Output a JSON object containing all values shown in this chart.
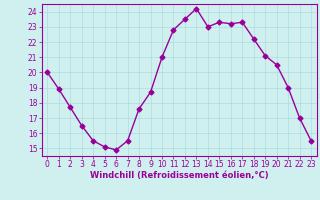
{
  "x": [
    0,
    1,
    2,
    3,
    4,
    5,
    6,
    7,
    8,
    9,
    10,
    11,
    12,
    13,
    14,
    15,
    16,
    17,
    18,
    19,
    20,
    21,
    22,
    23
  ],
  "y": [
    20.0,
    18.9,
    17.7,
    16.5,
    15.5,
    15.1,
    14.9,
    15.5,
    17.6,
    18.7,
    21.0,
    22.8,
    23.5,
    24.2,
    23.0,
    23.3,
    23.2,
    23.3,
    22.2,
    21.1,
    20.5,
    19.0,
    17.0,
    15.5
  ],
  "line_color": "#990099",
  "marker": "D",
  "marker_size": 2.5,
  "bg_color": "#d0f0f0",
  "grid_color": "#aadddd",
  "xlabel": "Windchill (Refroidissement éolien,°C)",
  "xlim": [
    -0.5,
    23.5
  ],
  "ylim": [
    14.5,
    24.5
  ],
  "yticks": [
    15,
    16,
    17,
    18,
    19,
    20,
    21,
    22,
    23,
    24
  ],
  "xticks": [
    0,
    1,
    2,
    3,
    4,
    5,
    6,
    7,
    8,
    9,
    10,
    11,
    12,
    13,
    14,
    15,
    16,
    17,
    18,
    19,
    20,
    21,
    22,
    23
  ],
  "tick_color": "#990099",
  "label_color": "#990099",
  "xlabel_fontsize": 6,
  "xlabel_fontweight": "bold",
  "tick_labelsize": 5.5
}
